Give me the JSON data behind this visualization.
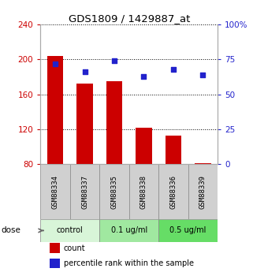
{
  "title": "GDS1809 / 1429887_at",
  "samples": [
    "GSM88334",
    "GSM88337",
    "GSM88335",
    "GSM88338",
    "GSM88336",
    "GSM88339"
  ],
  "bar_values": [
    204,
    172,
    175,
    122,
    113,
    81
  ],
  "scatter_values": [
    72,
    66,
    74,
    63,
    68,
    64
  ],
  "ylim_left": [
    80,
    240
  ],
  "ylim_right": [
    0,
    100
  ],
  "yticks_left": [
    80,
    120,
    160,
    200,
    240
  ],
  "yticks_right": [
    0,
    25,
    50,
    75,
    100
  ],
  "yticklabels_right": [
    "0",
    "25",
    "50",
    "75",
    "100%"
  ],
  "bar_color": "#cc0000",
  "scatter_color": "#2222cc",
  "bar_width": 0.55,
  "dose_groups": [
    {
      "label": "control",
      "start": 0,
      "end": 1,
      "color": "#d8f5d8"
    },
    {
      "label": "0.1 ug/ml",
      "start": 2,
      "end": 3,
      "color": "#a0e8a0"
    },
    {
      "label": "0.5 ug/ml",
      "start": 4,
      "end": 5,
      "color": "#66dd66"
    }
  ],
  "dose_label": "dose",
  "legend_count": "count",
  "legend_pct": "percentile rank within the sample",
  "label_color_left": "#cc0000",
  "label_color_right": "#2222cc",
  "sample_bg": "#d0d0d0"
}
